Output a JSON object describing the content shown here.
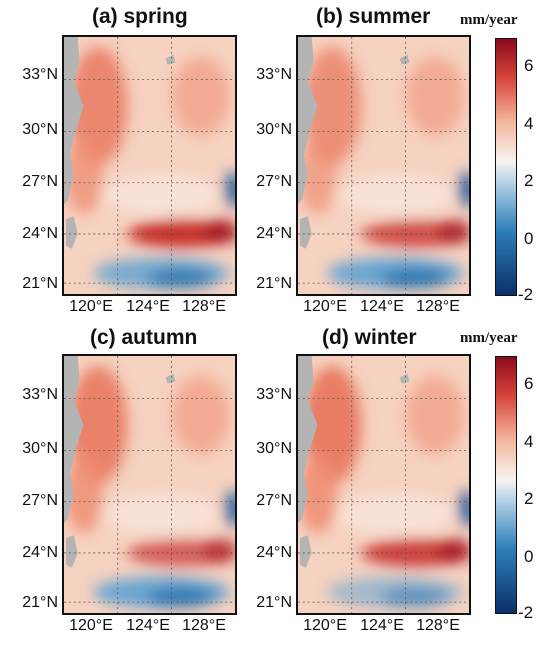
{
  "panels": [
    {
      "title": "(a) spring"
    },
    {
      "title": "(b) summer"
    },
    {
      "title": "(c) autumn"
    },
    {
      "title": "(d) winter"
    }
  ],
  "unit_label": "mm/year",
  "lat_labels": [
    "33°N",
    "30°N",
    "27°N",
    "24°N",
    "21°N"
  ],
  "lon_labels": [
    "120°E",
    "124°E",
    "128°E"
  ],
  "colorbar_ticks": [
    "6",
    "4",
    "2",
    "0",
    "-2"
  ],
  "colorbar_range": [
    -2,
    7
  ],
  "colors": {
    "land": "#b4b4b4",
    "low": "#0b2f6b",
    "mid": "#f7f4f0",
    "high": "#8b0a1a"
  }
}
